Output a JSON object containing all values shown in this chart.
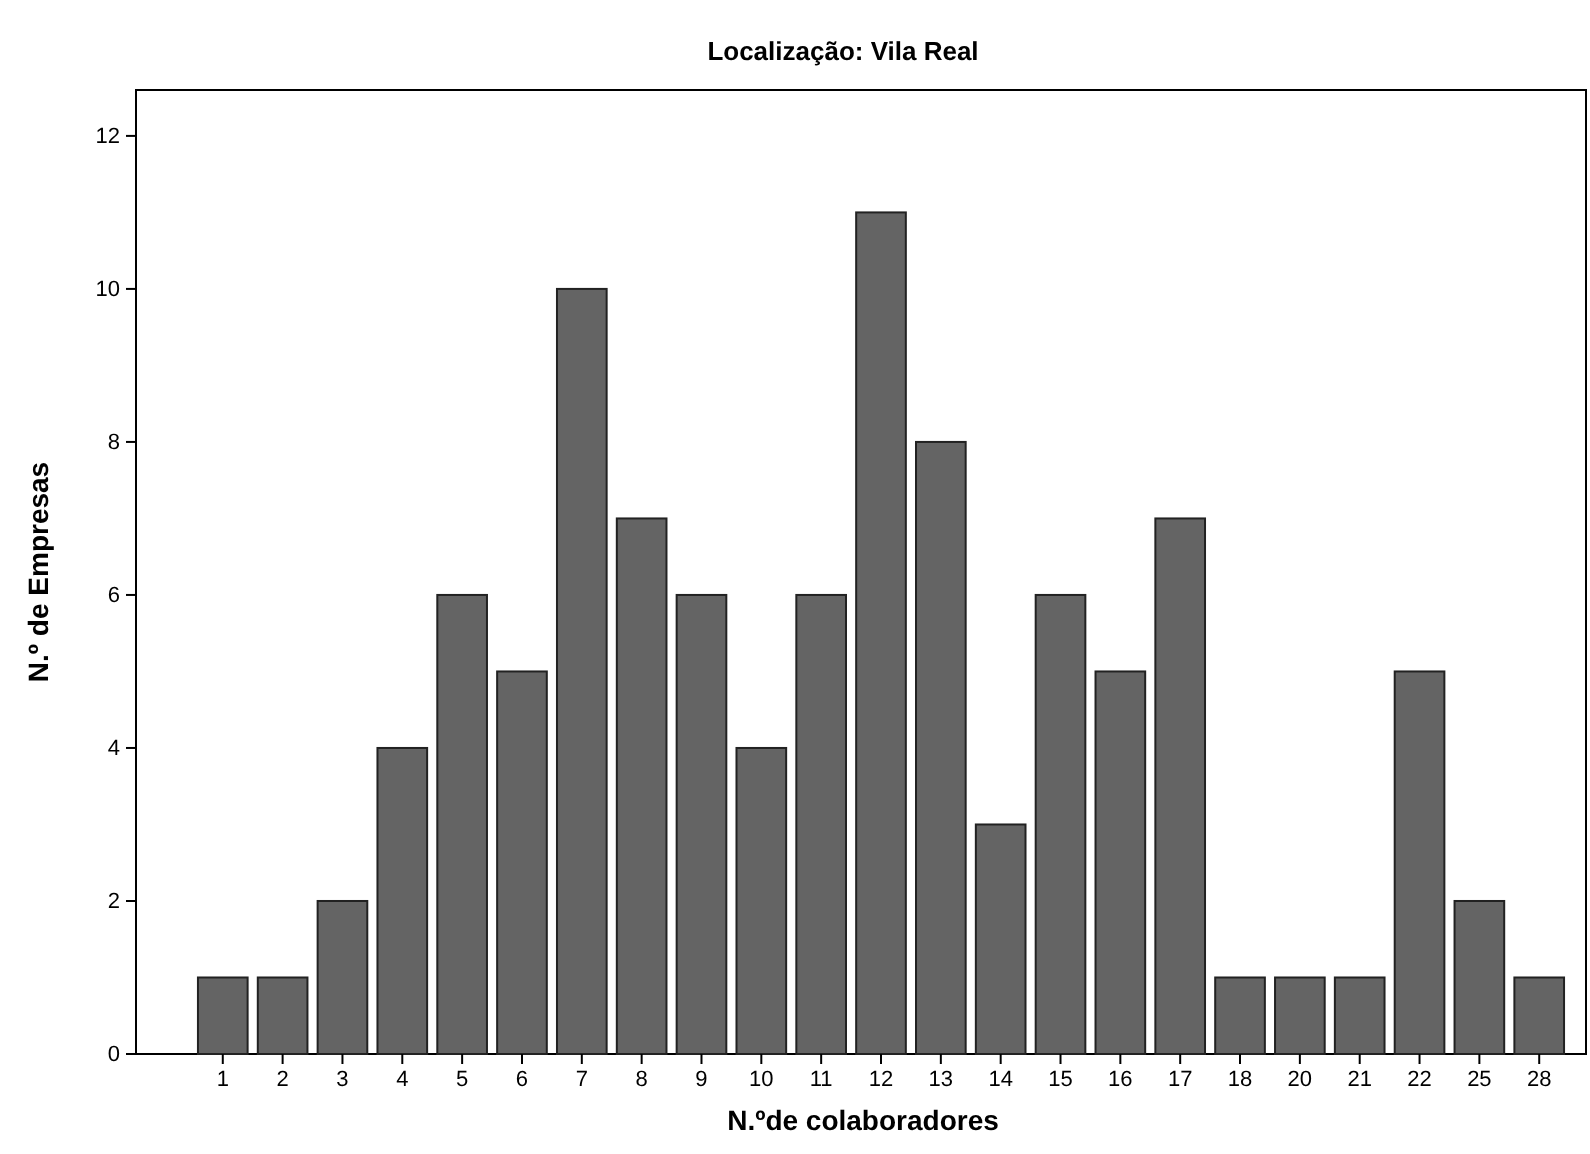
{
  "chart_data": {
    "type": "bar",
    "title": "Localização: Vila Real",
    "xlabel": "N.ºde colaboradores",
    "ylabel": "N.º de Empresas",
    "categories": [
      "1",
      "2",
      "3",
      "4",
      "5",
      "6",
      "7",
      "8",
      "9",
      "10",
      "11",
      "12",
      "13",
      "14",
      "15",
      "16",
      "17",
      "18",
      "20",
      "21",
      "22",
      "25",
      "28"
    ],
    "values": [
      1,
      1,
      2,
      4,
      6,
      5,
      10,
      7,
      6,
      4,
      6,
      11,
      8,
      3,
      6,
      5,
      7,
      1,
      1,
      1,
      5,
      2,
      1
    ],
    "color": "#646464",
    "ylim": [
      0,
      12.6
    ],
    "yticks": [
      0,
      2,
      4,
      6,
      8,
      10,
      12
    ],
    "grid": false
  }
}
